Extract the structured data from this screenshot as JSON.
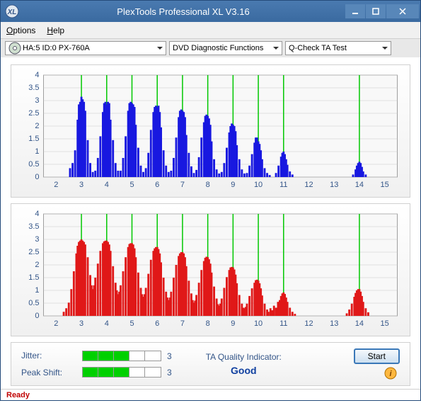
{
  "window": {
    "title": "PlexTools Professional XL V3.16"
  },
  "menu": {
    "options": "Options",
    "help": "Help"
  },
  "toolbar": {
    "device": "HA:5 ID:0   PX-760A",
    "function": "DVD Diagnostic Functions",
    "test": "Q-Check TA Test"
  },
  "chart_upper": {
    "type": "bar",
    "color": "#1818e0",
    "grid_color": "#c8c8c8",
    "vline_color": "#00c800",
    "background": "#f8f8f8",
    "ylim": [
      0,
      4
    ],
    "ytick_step": 0.5,
    "xlim": [
      1.5,
      15.5
    ],
    "xtick_start": 2,
    "xtick_step": 1,
    "label_fontsize": 11,
    "label_color": "#335588",
    "vlines": [
      3,
      4,
      5,
      6,
      7,
      8,
      9,
      10,
      11,
      14
    ],
    "bars": [
      [
        2.55,
        0.35
      ],
      [
        2.65,
        0.55
      ],
      [
        2.75,
        1.05
      ],
      [
        2.85,
        2.25
      ],
      [
        2.9,
        2.85
      ],
      [
        2.95,
        2.95
      ],
      [
        3.0,
        3.15
      ],
      [
        3.05,
        3.05
      ],
      [
        3.1,
        2.95
      ],
      [
        3.15,
        2.6
      ],
      [
        3.25,
        1.45
      ],
      [
        3.35,
        0.55
      ],
      [
        3.45,
        0.2
      ],
      [
        3.55,
        0.25
      ],
      [
        3.65,
        0.75
      ],
      [
        3.75,
        1.6
      ],
      [
        3.85,
        2.55
      ],
      [
        3.9,
        2.9
      ],
      [
        3.95,
        2.95
      ],
      [
        4.0,
        2.85
      ],
      [
        4.05,
        2.95
      ],
      [
        4.1,
        2.9
      ],
      [
        4.15,
        2.25
      ],
      [
        4.25,
        1.45
      ],
      [
        4.35,
        0.55
      ],
      [
        4.45,
        0.25
      ],
      [
        4.55,
        0.25
      ],
      [
        4.65,
        0.75
      ],
      [
        4.75,
        1.6
      ],
      [
        4.85,
        2.6
      ],
      [
        4.9,
        2.9
      ],
      [
        4.95,
        2.95
      ],
      [
        5.0,
        2.9
      ],
      [
        5.05,
        2.85
      ],
      [
        5.1,
        2.75
      ],
      [
        5.15,
        2.05
      ],
      [
        5.25,
        1.15
      ],
      [
        5.35,
        0.45
      ],
      [
        5.45,
        0.2
      ],
      [
        5.55,
        0.35
      ],
      [
        5.65,
        0.95
      ],
      [
        5.75,
        1.85
      ],
      [
        5.85,
        2.55
      ],
      [
        5.9,
        2.75
      ],
      [
        5.95,
        2.8
      ],
      [
        6.0,
        2.75
      ],
      [
        6.05,
        2.8
      ],
      [
        6.1,
        2.55
      ],
      [
        6.15,
        1.95
      ],
      [
        6.25,
        1.05
      ],
      [
        6.35,
        0.45
      ],
      [
        6.45,
        0.2
      ],
      [
        6.55,
        0.25
      ],
      [
        6.65,
        0.75
      ],
      [
        6.75,
        1.55
      ],
      [
        6.85,
        2.35
      ],
      [
        6.9,
        2.6
      ],
      [
        6.95,
        2.65
      ],
      [
        7.0,
        2.6
      ],
      [
        7.05,
        2.55
      ],
      [
        7.1,
        2.35
      ],
      [
        7.15,
        1.65
      ],
      [
        7.25,
        0.95
      ],
      [
        7.35,
        0.42
      ],
      [
        7.45,
        0.16
      ],
      [
        7.55,
        0.28
      ],
      [
        7.65,
        0.78
      ],
      [
        7.75,
        1.55
      ],
      [
        7.85,
        2.15
      ],
      [
        7.9,
        2.4
      ],
      [
        7.95,
        2.45
      ],
      [
        8.0,
        2.4
      ],
      [
        8.05,
        2.3
      ],
      [
        8.1,
        2.05
      ],
      [
        8.15,
        1.4
      ],
      [
        8.25,
        0.7
      ],
      [
        8.35,
        0.3
      ],
      [
        8.45,
        0.14
      ],
      [
        8.55,
        0.2
      ],
      [
        8.65,
        0.55
      ],
      [
        8.75,
        1.15
      ],
      [
        8.85,
        1.75
      ],
      [
        8.9,
        2.0
      ],
      [
        8.95,
        2.1
      ],
      [
        9.0,
        2.05
      ],
      [
        9.05,
        2.0
      ],
      [
        9.1,
        1.8
      ],
      [
        9.15,
        1.25
      ],
      [
        9.25,
        0.7
      ],
      [
        9.35,
        0.3
      ],
      [
        9.45,
        0.14
      ],
      [
        9.55,
        0.16
      ],
      [
        9.65,
        0.45
      ],
      [
        9.75,
        0.9
      ],
      [
        9.85,
        1.35
      ],
      [
        9.9,
        1.55
      ],
      [
        9.95,
        1.55
      ],
      [
        10.0,
        1.4
      ],
      [
        10.05,
        1.3
      ],
      [
        10.1,
        1.05
      ],
      [
        10.15,
        0.7
      ],
      [
        10.25,
        0.35
      ],
      [
        10.35,
        0.16
      ],
      [
        10.45,
        0.08
      ],
      [
        10.7,
        0.16
      ],
      [
        10.8,
        0.45
      ],
      [
        10.9,
        0.8
      ],
      [
        10.95,
        0.95
      ],
      [
        11.0,
        1.0
      ],
      [
        11.05,
        0.9
      ],
      [
        11.1,
        0.7
      ],
      [
        11.15,
        0.48
      ],
      [
        11.25,
        0.22
      ],
      [
        11.35,
        0.1
      ],
      [
        13.75,
        0.1
      ],
      [
        13.85,
        0.3
      ],
      [
        13.9,
        0.45
      ],
      [
        13.95,
        0.55
      ],
      [
        14.0,
        0.6
      ],
      [
        14.05,
        0.55
      ],
      [
        14.1,
        0.4
      ],
      [
        14.15,
        0.22
      ],
      [
        14.25,
        0.1
      ]
    ]
  },
  "chart_lower": {
    "type": "bar",
    "color": "#e01818",
    "grid_color": "#c8c8c8",
    "vline_color": "#00c800",
    "background": "#f8f8f8",
    "ylim": [
      0,
      4
    ],
    "ytick_step": 0.5,
    "xlim": [
      1.5,
      15.5
    ],
    "xtick_start": 2,
    "xtick_step": 1,
    "label_fontsize": 11,
    "label_color": "#335588",
    "vlines": [
      3,
      4,
      5,
      6,
      7,
      8,
      9,
      10,
      11,
      14
    ],
    "bars": [
      [
        2.3,
        0.16
      ],
      [
        2.4,
        0.3
      ],
      [
        2.5,
        0.52
      ],
      [
        2.6,
        1.05
      ],
      [
        2.7,
        1.75
      ],
      [
        2.8,
        2.45
      ],
      [
        2.85,
        2.75
      ],
      [
        2.9,
        2.9
      ],
      [
        2.95,
        2.95
      ],
      [
        3.0,
        3.0
      ],
      [
        3.05,
        2.95
      ],
      [
        3.1,
        2.9
      ],
      [
        3.15,
        2.8
      ],
      [
        3.25,
        2.3
      ],
      [
        3.35,
        1.6
      ],
      [
        3.4,
        1.2
      ],
      [
        3.45,
        1.05
      ],
      [
        3.5,
        1.2
      ],
      [
        3.55,
        1.5
      ],
      [
        3.65,
        2.05
      ],
      [
        3.75,
        2.55
      ],
      [
        3.85,
        2.85
      ],
      [
        3.9,
        2.92
      ],
      [
        3.95,
        2.95
      ],
      [
        4.0,
        2.95
      ],
      [
        4.05,
        2.9
      ],
      [
        4.1,
        2.8
      ],
      [
        4.15,
        2.55
      ],
      [
        4.25,
        1.95
      ],
      [
        4.35,
        1.3
      ],
      [
        4.4,
        1.0
      ],
      [
        4.45,
        0.85
      ],
      [
        4.5,
        0.95
      ],
      [
        4.55,
        1.2
      ],
      [
        4.65,
        1.75
      ],
      [
        4.75,
        2.3
      ],
      [
        4.85,
        2.7
      ],
      [
        4.9,
        2.82
      ],
      [
        4.95,
        2.85
      ],
      [
        5.0,
        2.85
      ],
      [
        5.05,
        2.8
      ],
      [
        5.1,
        2.65
      ],
      [
        5.15,
        2.3
      ],
      [
        5.25,
        1.7
      ],
      [
        5.35,
        1.1
      ],
      [
        5.4,
        0.85
      ],
      [
        5.45,
        0.75
      ],
      [
        5.5,
        0.85
      ],
      [
        5.55,
        1.1
      ],
      [
        5.65,
        1.65
      ],
      [
        5.75,
        2.2
      ],
      [
        5.85,
        2.55
      ],
      [
        5.9,
        2.65
      ],
      [
        5.95,
        2.7
      ],
      [
        6.0,
        2.7
      ],
      [
        6.05,
        2.62
      ],
      [
        6.1,
        2.45
      ],
      [
        6.15,
        2.1
      ],
      [
        6.25,
        1.5
      ],
      [
        6.35,
        0.95
      ],
      [
        6.4,
        0.72
      ],
      [
        6.45,
        0.62
      ],
      [
        6.5,
        0.72
      ],
      [
        6.55,
        0.95
      ],
      [
        6.65,
        1.5
      ],
      [
        6.75,
        2.0
      ],
      [
        6.85,
        2.35
      ],
      [
        6.9,
        2.45
      ],
      [
        6.95,
        2.5
      ],
      [
        7.0,
        2.5
      ],
      [
        7.05,
        2.45
      ],
      [
        7.1,
        2.3
      ],
      [
        7.15,
        1.95
      ],
      [
        7.25,
        1.38
      ],
      [
        7.35,
        0.88
      ],
      [
        7.4,
        0.62
      ],
      [
        7.45,
        0.52
      ],
      [
        7.5,
        0.6
      ],
      [
        7.55,
        0.82
      ],
      [
        7.65,
        1.3
      ],
      [
        7.75,
        1.8
      ],
      [
        7.85,
        2.15
      ],
      [
        7.9,
        2.28
      ],
      [
        7.95,
        2.32
      ],
      [
        8.0,
        2.3
      ],
      [
        8.05,
        2.22
      ],
      [
        8.1,
        2.05
      ],
      [
        8.15,
        1.7
      ],
      [
        8.25,
        1.15
      ],
      [
        8.35,
        0.68
      ],
      [
        8.4,
        0.46
      ],
      [
        8.45,
        0.4
      ],
      [
        8.5,
        0.48
      ],
      [
        8.55,
        0.68
      ],
      [
        8.65,
        1.1
      ],
      [
        8.75,
        1.52
      ],
      [
        8.85,
        1.8
      ],
      [
        8.9,
        1.9
      ],
      [
        8.95,
        1.92
      ],
      [
        9.0,
        1.9
      ],
      [
        9.05,
        1.82
      ],
      [
        9.1,
        1.62
      ],
      [
        9.15,
        1.28
      ],
      [
        9.25,
        0.82
      ],
      [
        9.35,
        0.48
      ],
      [
        9.4,
        0.32
      ],
      [
        9.45,
        0.3
      ],
      [
        9.5,
        0.35
      ],
      [
        9.55,
        0.48
      ],
      [
        9.65,
        0.78
      ],
      [
        9.75,
        1.08
      ],
      [
        9.85,
        1.3
      ],
      [
        9.9,
        1.4
      ],
      [
        9.95,
        1.42
      ],
      [
        10.0,
        1.38
      ],
      [
        10.05,
        1.28
      ],
      [
        10.1,
        1.08
      ],
      [
        10.15,
        0.8
      ],
      [
        10.25,
        0.48
      ],
      [
        10.35,
        0.25
      ],
      [
        10.4,
        0.16
      ],
      [
        10.48,
        0.3
      ],
      [
        10.55,
        0.22
      ],
      [
        10.62,
        0.4
      ],
      [
        10.7,
        0.32
      ],
      [
        10.78,
        0.55
      ],
      [
        10.85,
        0.62
      ],
      [
        10.9,
        0.78
      ],
      [
        10.95,
        0.88
      ],
      [
        11.0,
        0.92
      ],
      [
        11.05,
        0.86
      ],
      [
        11.1,
        0.72
      ],
      [
        11.15,
        0.55
      ],
      [
        11.25,
        0.32
      ],
      [
        11.35,
        0.16
      ],
      [
        11.45,
        0.08
      ],
      [
        13.5,
        0.1
      ],
      [
        13.6,
        0.25
      ],
      [
        13.7,
        0.48
      ],
      [
        13.8,
        0.75
      ],
      [
        13.85,
        0.9
      ],
      [
        13.9,
        1.0
      ],
      [
        13.95,
        1.05
      ],
      [
        14.0,
        1.05
      ],
      [
        14.05,
        0.95
      ],
      [
        14.1,
        0.78
      ],
      [
        14.15,
        0.55
      ],
      [
        14.25,
        0.3
      ],
      [
        14.35,
        0.14
      ]
    ]
  },
  "metrics": {
    "jitter": {
      "label": "Jitter:",
      "value": "3",
      "filled": 3,
      "total": 5
    },
    "peakshift": {
      "label": "Peak Shift:",
      "value": "3",
      "filled": 3,
      "total": 5
    },
    "quality": {
      "label": "TA Quality Indicator:",
      "value": "Good",
      "value_color": "#1040a0"
    },
    "start_btn": "Start"
  },
  "status": {
    "text": "Ready"
  }
}
